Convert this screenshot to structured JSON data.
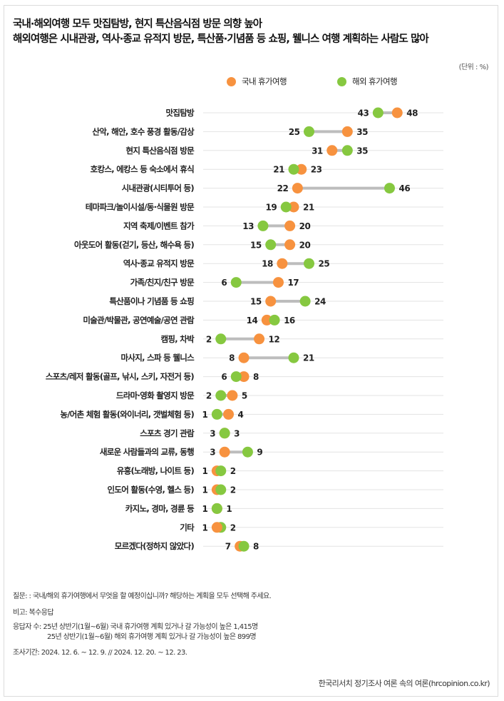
{
  "header": {
    "title_line1": "국내·해외여행 모두 맛집탐방, 현지 특산음식점 방문 의향 높아",
    "title_line2": "해외여행은 시내관광, 역사·종교 유적지 방문, 특산품·기념품 등 쇼핑, 웰니스 여행 계획하는 사람도 많아",
    "unit": "(단위 : %)"
  },
  "colors": {
    "domestic": "#f7923f",
    "overseas": "#86c840",
    "connector": "#bdbdbd",
    "gridline": "#e3e3e3"
  },
  "chart_data": {
    "type": "dumbbell",
    "title": "국내·해외여행 모두 맛집탐방, 현지 특산음식점 방문 의향 높아",
    "unit": "%",
    "xlim": [
      0,
      60
    ],
    "grid": true,
    "legend_position": "top",
    "categories": [
      "맛집탐방",
      "산악, 해안, 호수 풍경 활동/감상",
      "현지 특산음식점 방문",
      "호캉스, 에캉스 등 숙소에서 휴식",
      "시내관광(시티투어 등)",
      "테마파크/놀이시설/동·식물원 방문",
      "지역 축제/이벤트 참가",
      "아웃도어 활동(걷기, 등산, 해수욕 등)",
      "역사·종교 유적지 방문",
      "가족/친지/친구 방문",
      "특산품이나 기념품 등 쇼핑",
      "미술관/박물관, 공연예술/공연 관람",
      "캠핑, 차박",
      "마사지, 스파 등 웰니스",
      "스포츠/레저 활동(골프, 낚시, 스키, 자전거 등)",
      "드라마·영화 촬영지 방문",
      "농/어촌 체험 활동(와이너리, 갯벌체험 등)",
      "스포츠 경기 관람",
      "새로운 사람들과의 교류, 동행",
      "유흥(노래방, 나이트 등)",
      "인도어 활동(수영, 헬스 등)",
      "카지노, 경마, 경륜 등",
      "기타",
      "모르겠다(정하지 않았다)"
    ],
    "series": [
      {
        "name": "국내 휴가여행",
        "values": [
          48,
          35,
          31,
          23,
          22,
          21,
          20,
          20,
          18,
          17,
          15,
          14,
          12,
          8,
          8,
          5,
          4,
          3,
          3,
          1,
          1,
          1,
          1,
          7
        ]
      },
      {
        "name": "해외 휴가여행",
        "values": [
          43,
          25,
          35,
          21,
          46,
          19,
          13,
          15,
          25,
          6,
          24,
          16,
          2,
          21,
          6,
          2,
          1,
          3,
          9,
          2,
          2,
          1,
          2,
          8
        ]
      }
    ]
  },
  "notes": {
    "question": "질문: : 국내/해외 휴가여행에서 무엇을 할 예정이십니까? 해당하는 계획을 모두 선택해 주세요.",
    "remark": "비고: 복수응답",
    "respondents_line1": "응답자 수: 25년 상반기(1월~6월) 국내 휴가여행 계획 있거나 갈 가능성이 높은 1,415명",
    "respondents_line2": "25년 상반기(1월~6월) 해외 휴가여행 계획 있거나 갈 가능성이 높은 899명",
    "period": "조사기간: 2024. 12. 6. ~ 12. 9. // 2024. 12. 20. ~ 12. 23."
  },
  "source": "한국리서치 정기조사 여론 속의 여론(hrcopinion.co.kr)"
}
